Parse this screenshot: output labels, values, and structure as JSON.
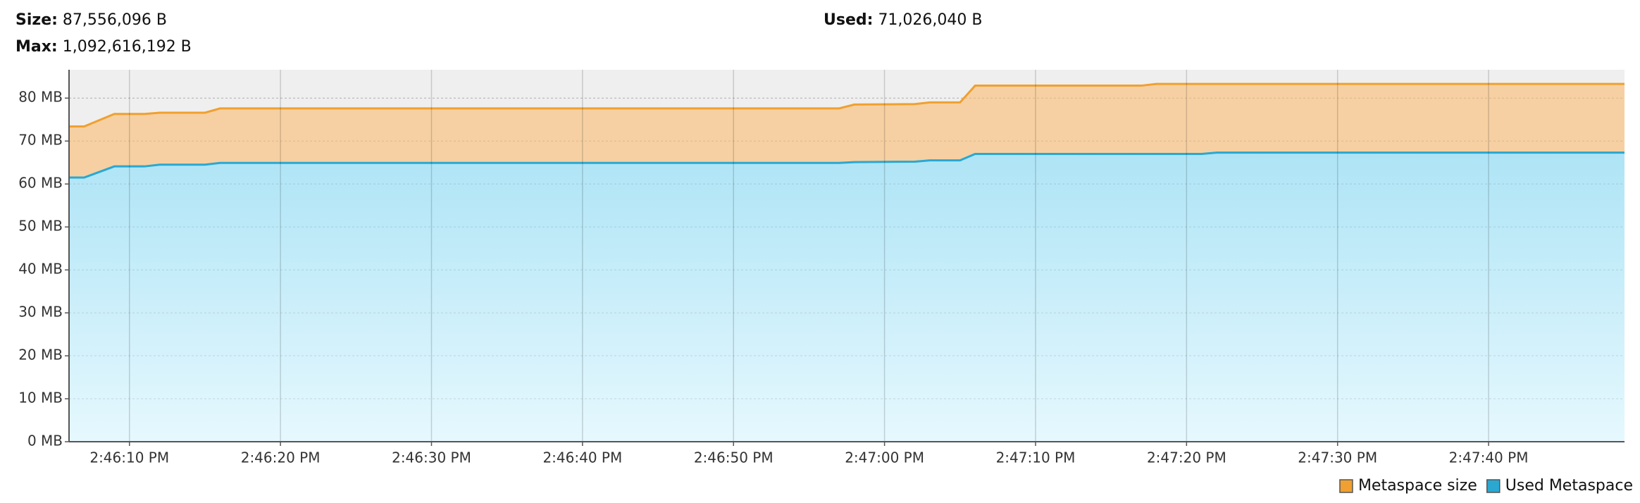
{
  "header": {
    "size_label": "Size:",
    "size_value": "87,556,096 B",
    "max_label": "Max:",
    "max_value": "1,092,616,192 B",
    "used_label": "Used:",
    "used_value": "71,026,040 B"
  },
  "chart_data": {
    "type": "area",
    "x": [
      "2:46:06 PM",
      "2:46:07 PM",
      "2:46:09 PM",
      "2:46:11 PM",
      "2:46:12 PM",
      "2:46:15 PM",
      "2:46:16 PM",
      "2:46:57 PM",
      "2:46:58 PM",
      "2:47:02 PM",
      "2:47:03 PM",
      "2:47:05 PM",
      "2:47:06 PM",
      "2:47:17 PM",
      "2:47:18 PM",
      "2:47:21 PM",
      "2:47:22 PM",
      "2:47:49 PM"
    ],
    "series": [
      {
        "name": "Metaspace size",
        "color": "#f0a030",
        "fill": "#f6d0a2",
        "values": [
          73.4,
          73.4,
          76.3,
          76.3,
          76.6,
          76.6,
          77.6,
          77.6,
          78.5,
          78.6,
          79.0,
          79.0,
          82.9,
          82.9,
          83.3,
          83.3,
          83.3,
          83.3
        ]
      },
      {
        "name": "Used Metaspace",
        "color": "#2aa8d2",
        "fill": "#aee4f6",
        "values": [
          61.5,
          61.5,
          64.1,
          64.1,
          64.5,
          64.5,
          64.9,
          64.9,
          65.1,
          65.2,
          65.5,
          65.5,
          67.0,
          67.0,
          67.0,
          67.0,
          67.3,
          67.3
        ]
      }
    ],
    "xlim": [
      "2:46:06 PM",
      "2:47:49 PM"
    ],
    "xticks": [
      "2:46:10 PM",
      "2:46:20 PM",
      "2:46:30 PM",
      "2:46:40 PM",
      "2:46:50 PM",
      "2:47:00 PM",
      "2:47:10 PM",
      "2:47:20 PM",
      "2:47:30 PM",
      "2:47:40 PM"
    ],
    "ylim": [
      0,
      86.6
    ],
    "yticks": [
      {
        "value": 0,
        "label": "0 MB"
      },
      {
        "value": 10,
        "label": "10 MB"
      },
      {
        "value": 20,
        "label": "20 MB"
      },
      {
        "value": 30,
        "label": "30 MB"
      },
      {
        "value": 40,
        "label": "40 MB"
      },
      {
        "value": 50,
        "label": "50 MB"
      },
      {
        "value": 60,
        "label": "60 MB"
      },
      {
        "value": 70,
        "label": "70 MB"
      },
      {
        "value": 80,
        "label": "80 MB"
      }
    ],
    "grid": true,
    "legend": "bottom-right"
  }
}
